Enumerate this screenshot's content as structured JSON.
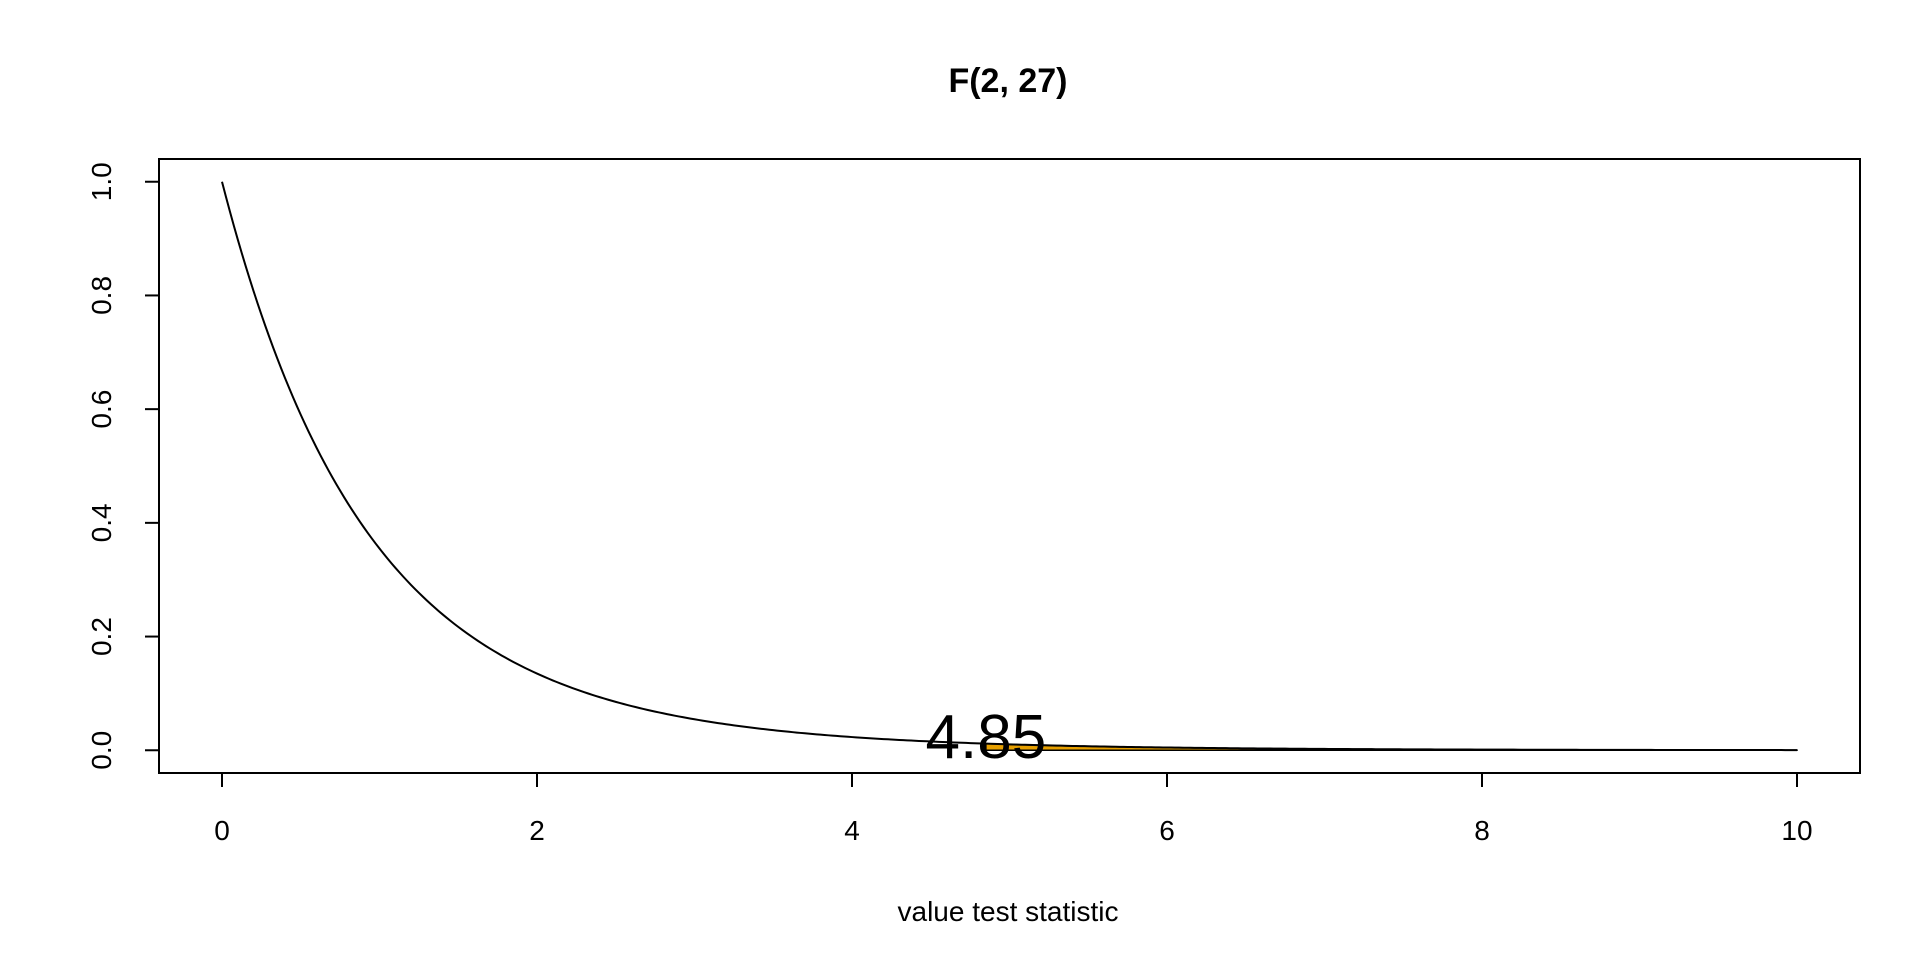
{
  "chart_data": {
    "type": "line",
    "title": "F(2, 27)",
    "xlabel": "value test statistic",
    "ylabel": "",
    "xlim": [
      -0.4,
      10.4
    ],
    "ylim": [
      -0.04,
      1.04
    ],
    "x_ticks": [
      "0",
      "2",
      "4",
      "6",
      "8",
      "10"
    ],
    "y_ticks": [
      "0.0",
      "0.2",
      "0.4",
      "0.6",
      "0.8",
      "1.0"
    ],
    "series": [
      {
        "x": [
          0,
          0.25,
          0.5,
          0.75,
          1,
          1.25,
          1.5,
          2,
          2.5,
          3,
          3.5,
          4,
          4.5,
          4.85,
          5,
          5.5,
          6,
          7,
          8,
          9,
          10
        ],
        "y": [
          1.0,
          0.78,
          0.611,
          0.48,
          0.379,
          0.3,
          0.239,
          0.154,
          0.101,
          0.068,
          0.046,
          0.032,
          0.022,
          0.018,
          0.016,
          0.012,
          0.009,
          0.005,
          0.003,
          0.002,
          0.001
        ]
      }
    ],
    "shaded_region": {
      "x_from": 4.85,
      "x_to": 10,
      "color": "#E69F00"
    },
    "annotations": [
      {
        "text": "4.85",
        "x": 4.85,
        "y": 0.018
      }
    ],
    "grid": false,
    "legend": "none"
  }
}
